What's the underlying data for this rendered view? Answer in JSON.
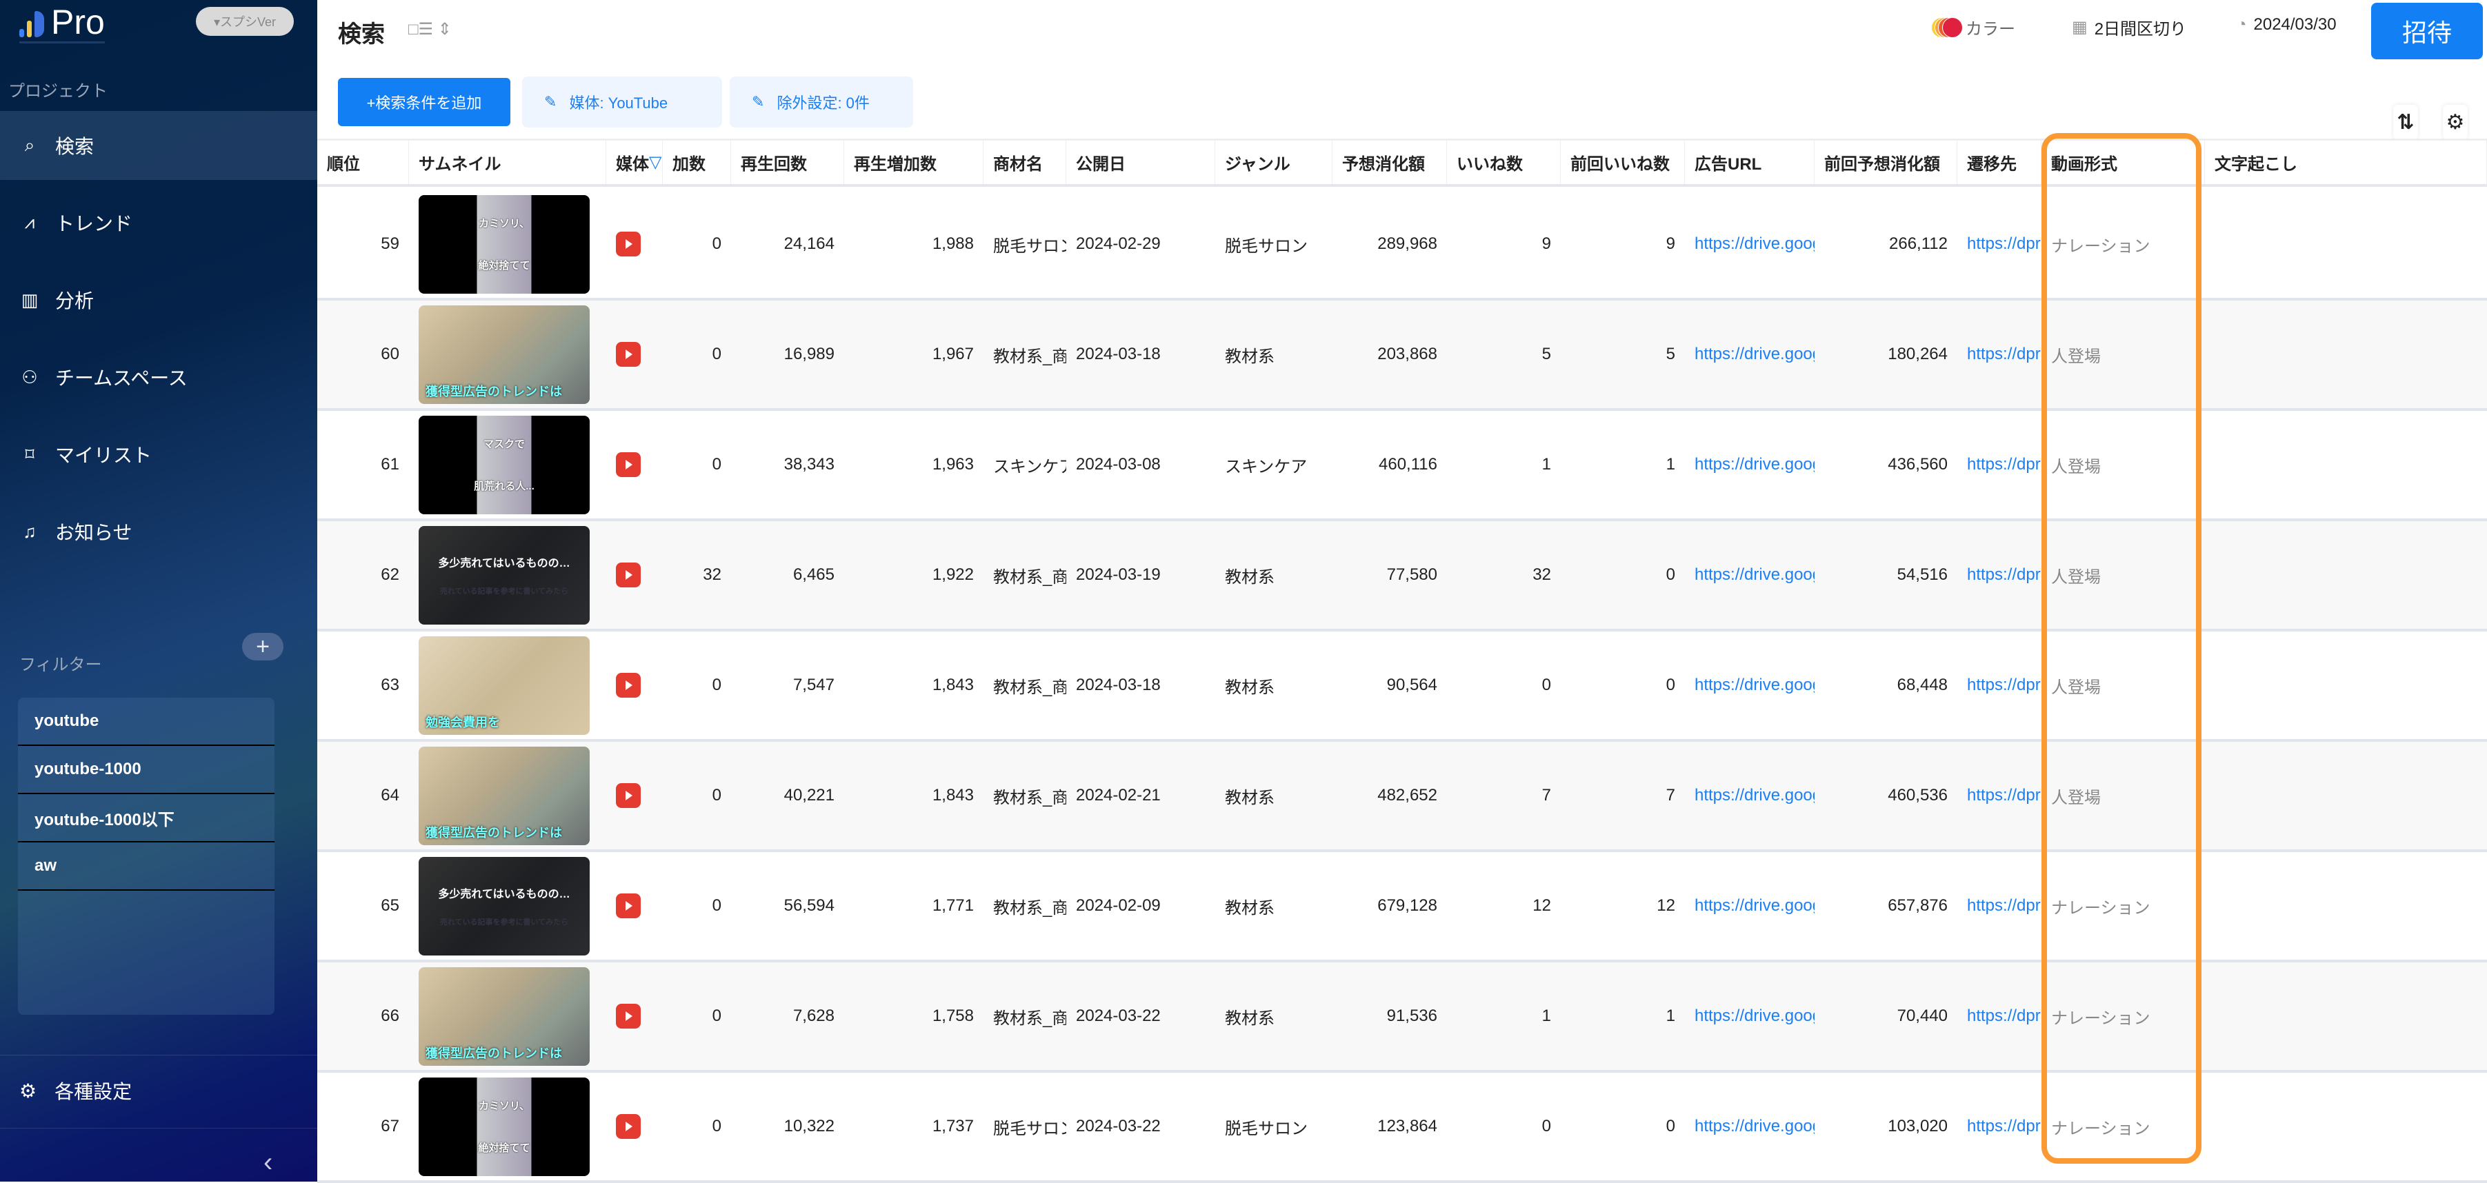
{
  "sidebar": {
    "logo_text": "Pro",
    "version_badge": "▾スプシVer",
    "project_label": "プロジェクト",
    "nav": [
      {
        "label": "検索",
        "icon": "search-icon",
        "active": true
      },
      {
        "label": "トレンド",
        "icon": "trend-chart-icon"
      },
      {
        "label": "分析",
        "icon": "bar-chart-icon"
      },
      {
        "label": "チームスペース",
        "icon": "team-icon"
      },
      {
        "label": "マイリスト",
        "icon": "bookmark-icon"
      },
      {
        "label": "お知らせ",
        "icon": "bell-icon"
      }
    ],
    "filter_label": "フィルター",
    "filter_add": "+",
    "filters": [
      "youtube",
      "youtube-1000",
      "youtube-1000以下",
      "aw"
    ],
    "settings_label": "各種設定",
    "collapse": "‹"
  },
  "header": {
    "title": "検索",
    "view_toggle": "□☰ ⇕",
    "color_label": "カラー",
    "period_label": "2日間区切り",
    "date": "2024/03/30",
    "invite": "招待"
  },
  "toolbar": {
    "add_condition": "+検索条件を追加",
    "media_chip": "媒体: YouTube",
    "exclude_chip": "除外設定: 0件",
    "sort": "⇅",
    "settings": "⚙"
  },
  "colors": {
    "accent": "#127ff5",
    "highlight": "#f99a32",
    "youtube": "#e53a2f"
  },
  "table": {
    "columns": [
      "順位",
      "サムネイル",
      "媒体",
      "加数",
      "再生回数",
      "再生増加数",
      "商材名",
      "公開日",
      "ジャンル",
      "予想消化額",
      "いいね数",
      "前回いいね数",
      "広告URL",
      "前回予想消化額",
      "遷移先",
      "動画形式",
      "文字起こし"
    ],
    "rows": [
      {
        "rank": "59",
        "thumb": "a",
        "cap": [
          "カミソリ、",
          "絶対捨てて"
        ],
        "media": "youtube",
        "add": "0",
        "views": "24,164",
        "inc": "1,988",
        "product": "脱毛サロン",
        "date": "2024-02-29",
        "genre": "脱毛サロン",
        "spend": "289,968",
        "likes": "9",
        "prev_likes": "9",
        "url": "https://drive.goog",
        "prev_spend": "266,112",
        "dest": "https://dpr",
        "format": "ナレーション",
        "transcript": ""
      },
      {
        "rank": "60",
        "thumb": "b",
        "cap": [
          "獲得型広告のトレンドは"
        ],
        "media": "youtube",
        "add": "0",
        "views": "16,989",
        "inc": "1,967",
        "product": "教材系_商",
        "date": "2024-03-18",
        "genre": "教材系",
        "spend": "203,868",
        "likes": "5",
        "prev_likes": "5",
        "url": "https://drive.goog",
        "prev_spend": "180,264",
        "dest": "https://dpr",
        "format": "人登場",
        "transcript": ""
      },
      {
        "rank": "61",
        "thumb": "a",
        "cap": [
          "マスクで",
          "肌荒れる人..."
        ],
        "media": "youtube",
        "add": "0",
        "views": "38,343",
        "inc": "1,963",
        "product": "スキンケア",
        "date": "2024-03-08",
        "genre": "スキンケア",
        "spend": "460,116",
        "likes": "1",
        "prev_likes": "1",
        "url": "https://drive.goog",
        "prev_spend": "436,560",
        "dest": "https://dpr",
        "format": "人登場",
        "transcript": ""
      },
      {
        "rank": "62",
        "thumb": "c",
        "cap": [
          "多少売れてはいるものの…",
          "売れている記事を参考に書いてみたら"
        ],
        "media": "youtube",
        "add": "32",
        "views": "6,465",
        "inc": "1,922",
        "product": "教材系_商",
        "date": "2024-03-19",
        "genre": "教材系",
        "spend": "77,580",
        "likes": "32",
        "prev_likes": "0",
        "url": "https://drive.goog",
        "prev_spend": "54,516",
        "dest": "https://dpr",
        "format": "人登場",
        "transcript": ""
      },
      {
        "rank": "63",
        "thumb": "d",
        "cap": [
          "勉強会費用を"
        ],
        "media": "youtube",
        "add": "0",
        "views": "7,547",
        "inc": "1,843",
        "product": "教材系_商",
        "date": "2024-03-18",
        "genre": "教材系",
        "spend": "90,564",
        "likes": "0",
        "prev_likes": "0",
        "url": "https://drive.goog",
        "prev_spend": "68,448",
        "dest": "https://dpr",
        "format": "人登場",
        "transcript": ""
      },
      {
        "rank": "64",
        "thumb": "b",
        "cap": [
          "獲得型広告のトレンドは"
        ],
        "media": "youtube",
        "add": "0",
        "views": "40,221",
        "inc": "1,843",
        "product": "教材系_商",
        "date": "2024-02-21",
        "genre": "教材系",
        "spend": "482,652",
        "likes": "7",
        "prev_likes": "7",
        "url": "https://drive.goog",
        "prev_spend": "460,536",
        "dest": "https://dpr",
        "format": "人登場",
        "transcript": ""
      },
      {
        "rank": "65",
        "thumb": "c",
        "cap": [
          "多少売れてはいるものの…",
          "売れている記事を参考に書いてみたら"
        ],
        "media": "youtube",
        "add": "0",
        "views": "56,594",
        "inc": "1,771",
        "product": "教材系_商",
        "date": "2024-02-09",
        "genre": "教材系",
        "spend": "679,128",
        "likes": "12",
        "prev_likes": "12",
        "url": "https://drive.goog",
        "prev_spend": "657,876",
        "dest": "https://dpr",
        "format": "ナレーション",
        "transcript": ""
      },
      {
        "rank": "66",
        "thumb": "b",
        "cap": [
          "獲得型広告のトレンドは"
        ],
        "media": "youtube",
        "add": "0",
        "views": "7,628",
        "inc": "1,758",
        "product": "教材系_商",
        "date": "2024-03-22",
        "genre": "教材系",
        "spend": "91,536",
        "likes": "1",
        "prev_likes": "1",
        "url": "https://drive.goog",
        "prev_spend": "70,440",
        "dest": "https://dpr",
        "format": "ナレーション",
        "transcript": ""
      },
      {
        "rank": "67",
        "thumb": "a",
        "cap": [
          "カミソリ、",
          "絶対捨てて"
        ],
        "media": "youtube",
        "add": "0",
        "views": "10,322",
        "inc": "1,737",
        "product": "脱毛サロン",
        "date": "2024-03-22",
        "genre": "脱毛サロン",
        "spend": "123,864",
        "likes": "0",
        "prev_likes": "0",
        "url": "https://drive.goog",
        "prev_spend": "103,020",
        "dest": "https://dpr",
        "format": "ナレーション",
        "transcript": ""
      }
    ]
  }
}
